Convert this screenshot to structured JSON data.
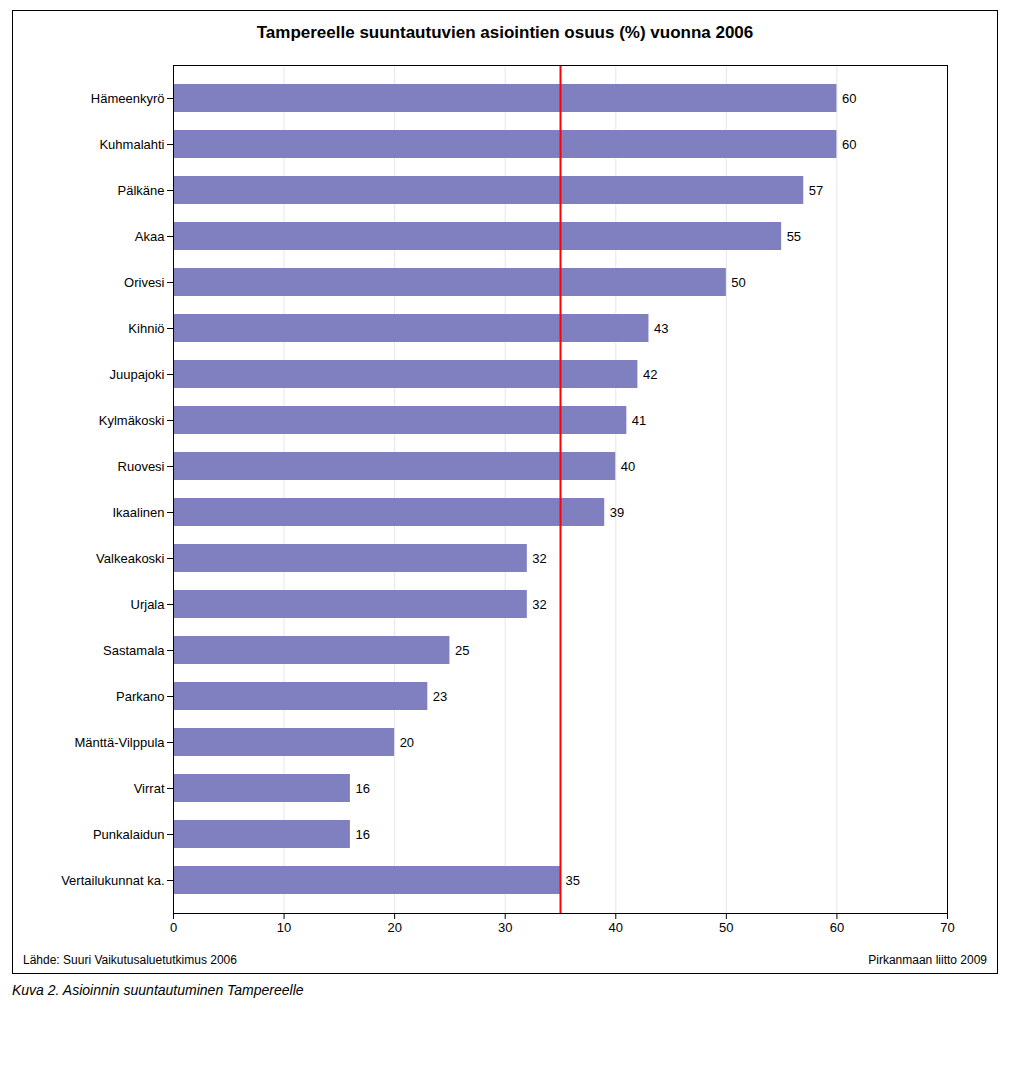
{
  "chart_data": {
    "type": "bar",
    "orientation": "horizontal",
    "title": "Tampereelle suuntautuvien asiointien osuus (%) vuonna 2006",
    "categories": [
      "Vertailukunnat ka.",
      "Punkalaidun",
      "Virrat",
      "Mänttä-Vilppula",
      "Parkano",
      "Sastamala",
      "Urjala",
      "Valkeakoski",
      "Ikaalinen",
      "Ruovesi",
      "Kylmäkoski",
      "Juupajoki",
      "Kihniö",
      "Orivesi",
      "Akaa",
      "Pälkäne",
      "Kuhmalahti",
      "Hämeenkyrö"
    ],
    "values": [
      35,
      16,
      16,
      20,
      23,
      25,
      32,
      32,
      39,
      40,
      41,
      42,
      43,
      50,
      55,
      57,
      60,
      60
    ],
    "color": "#8080c0",
    "xlim": [
      0,
      70
    ],
    "xticks": [
      0,
      10,
      20,
      30,
      40,
      50,
      60,
      70
    ],
    "grid": true,
    "data_labels": true,
    "reference_line": {
      "x": 35,
      "color": "red"
    },
    "footnote_left": "Lähde: Suuri Vaikutusaluetutkimus 2006",
    "footnote_right": "Pirkanmaan liitto 2009",
    "caption": "Kuva 2. Asioinnin suuntautuminen Tampereelle"
  }
}
